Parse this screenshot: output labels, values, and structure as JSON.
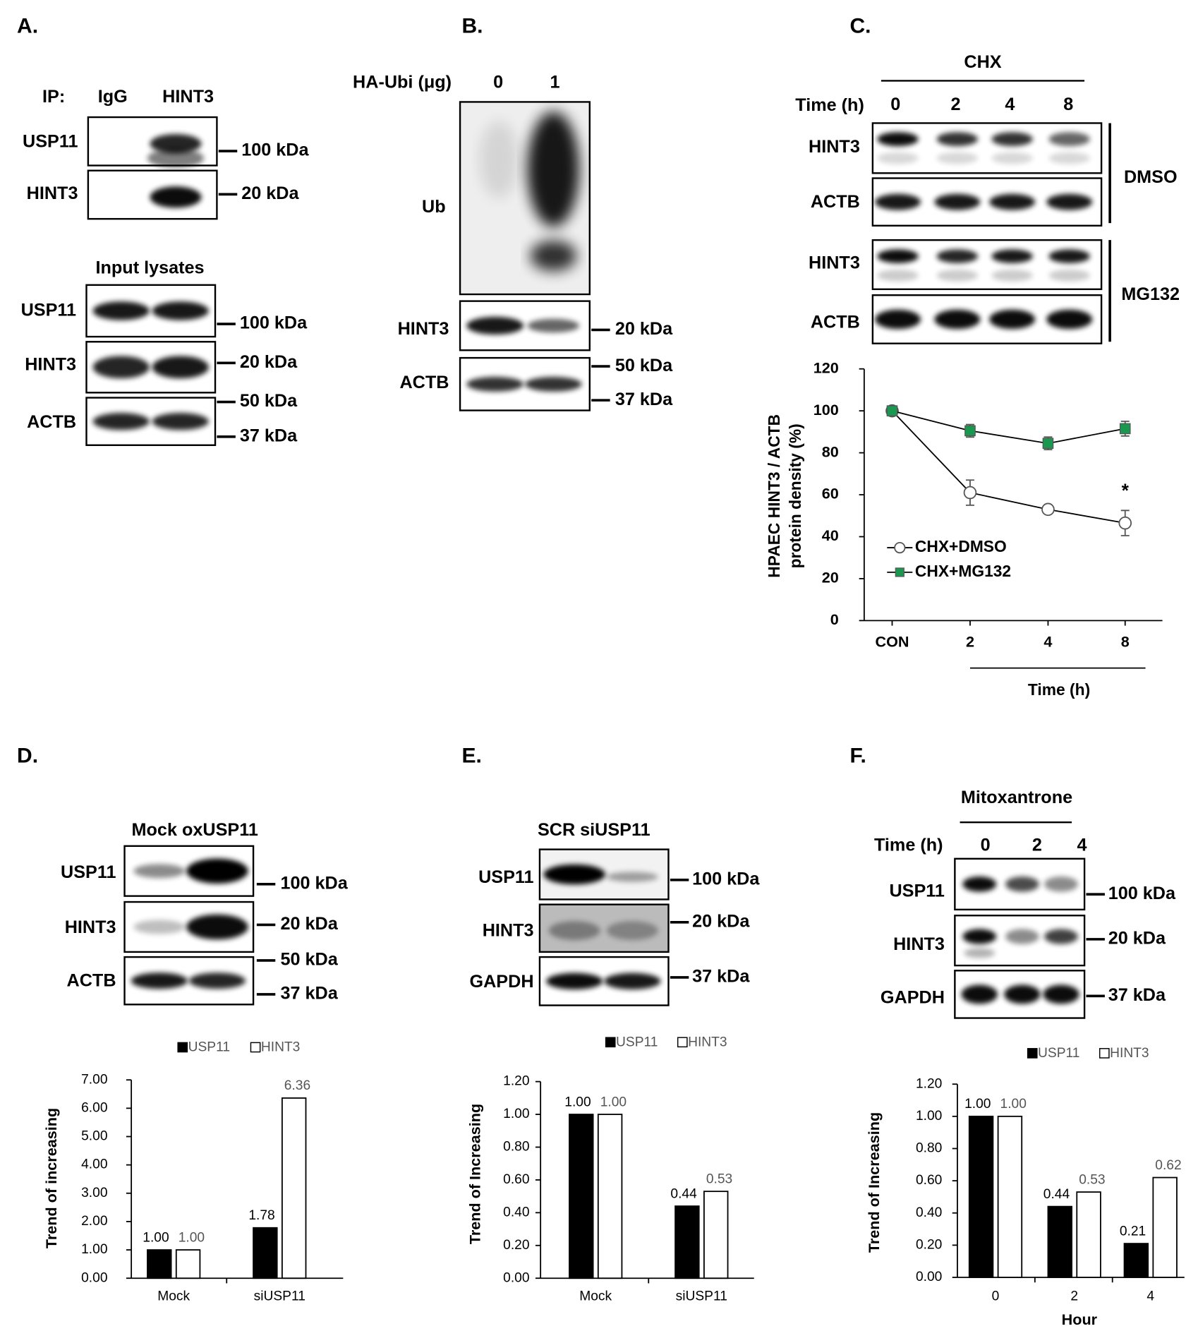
{
  "panels": {
    "A": {
      "label": "A.",
      "ip": "IP:",
      "lanes": [
        "IgG",
        "HINT3"
      ],
      "rows": [
        "USP11",
        "HINT3"
      ],
      "markers": [
        "100 kDa",
        "20 kDa"
      ],
      "input_title": "Input lysates",
      "input_rows": [
        "USP11",
        "HINT3",
        "ACTB"
      ],
      "input_markers": [
        "100 kDa",
        "20 kDa",
        "50 kDa",
        "37 kDa"
      ]
    },
    "B": {
      "label": "B.",
      "dose_label": "HA-Ubi (μg)",
      "lanes": [
        "0",
        "1"
      ],
      "rows": [
        "Ub",
        "HINT3",
        "ACTB"
      ],
      "markers": [
        "20 kDa",
        "50 kDa",
        "37 kDa"
      ]
    },
    "C": {
      "label": "C.",
      "treatment": "CHX",
      "time_label": "Time (h)",
      "lanes": [
        "0",
        "2",
        "4",
        "8"
      ],
      "rows": [
        "HINT3",
        "ACTB",
        "HINT3",
        "ACTB"
      ],
      "groups": [
        "DMSO",
        "MG132"
      ]
    },
    "D": {
      "label": "D.",
      "lanes_title": "Mock oxUSP11",
      "rows": [
        "USP11",
        "HINT3",
        "ACTB"
      ],
      "markers": [
        "100 kDa",
        "20 kDa",
        "50 kDa",
        "37 kDa"
      ]
    },
    "E": {
      "label": "E.",
      "lanes_title": "SCR siUSP11",
      "rows": [
        "USP11",
        "HINT3",
        "GAPDH"
      ],
      "markers": [
        "100 kDa",
        "20 kDa",
        "37 kDa"
      ]
    },
    "F": {
      "label": "F.",
      "treatment": "Mitoxantrone",
      "time_label": "Time (h)",
      "lanes": [
        "0",
        "2",
        "4"
      ],
      "rows": [
        "USP11",
        "HINT3",
        "GAPDH"
      ],
      "markers": [
        "100 kDa",
        "20 kDa",
        "37 kDa"
      ]
    }
  },
  "chart_data": [
    {
      "type": "line",
      "y_label": [
        "HPAEC  HINT3 / ACTB",
        "protein density (%)"
      ],
      "x_label": "Time (h)",
      "categories": [
        "CON",
        "2",
        "4",
        "8"
      ],
      "ylim": [
        0,
        120
      ],
      "yticks": [
        0,
        20,
        40,
        60,
        80,
        100,
        120
      ],
      "series": [
        {
          "name": "CHX+DMSO",
          "color": "#ffffff",
          "marker": "circle",
          "values": [
            100,
            61,
            53,
            46.5
          ],
          "errors": [
            2,
            6,
            1.5,
            6
          ]
        },
        {
          "name": "CHX+MG132",
          "color": "#1a9850",
          "marker": "square",
          "values": [
            100,
            90.5,
            84.5,
            91.5
          ],
          "errors": [
            2,
            3,
            3,
            3.5
          ]
        }
      ],
      "annotations": [
        {
          "text": "*",
          "index": 3
        }
      ]
    },
    {
      "type": "bar",
      "y_label": "Trend of increasing",
      "categories": [
        "Mock",
        "siUSP11"
      ],
      "ylim": [
        0,
        7
      ],
      "yticks": [
        {
          "value": 0,
          "label": "0.00"
        },
        {
          "value": 1,
          "label": "1.00"
        },
        {
          "value": 2,
          "label": "2.00"
        },
        {
          "value": 3,
          "label": "3.00"
        },
        {
          "value": 4,
          "label": "4.00"
        },
        {
          "value": 5,
          "label": "5.00"
        },
        {
          "value": 6,
          "label": "6.00"
        },
        {
          "value": 7,
          "label": "7.00"
        }
      ],
      "series": [
        {
          "name": "USP11",
          "color": "#000000",
          "values": [
            1.0,
            1.78
          ],
          "value_labels": [
            "1.00",
            "1.78"
          ]
        },
        {
          "name": "HINT3",
          "color": "#ffffff",
          "values": [
            1.0,
            6.36
          ],
          "value_labels": [
            "1.00",
            "6.36"
          ]
        }
      ]
    },
    {
      "type": "bar",
      "y_label": "Trend of Increasing",
      "categories": [
        "Mock",
        "siUSP11"
      ],
      "ylim": [
        0,
        1.2
      ],
      "yticks": [
        {
          "value": 0,
          "label": "0.00"
        },
        {
          "value": 0.2,
          "label": "0.20"
        },
        {
          "value": 0.4,
          "label": "0.40"
        },
        {
          "value": 0.6,
          "label": "0.60"
        },
        {
          "value": 0.8,
          "label": "0.80"
        },
        {
          "value": 1,
          "label": "1.00"
        },
        {
          "value": 1.2,
          "label": "1.20"
        }
      ],
      "series": [
        {
          "name": "USP11",
          "color": "#000000",
          "values": [
            1.0,
            0.44
          ],
          "value_labels": [
            "1.00",
            "0.44"
          ]
        },
        {
          "name": "HINT3",
          "color": "#ffffff",
          "values": [
            1.0,
            0.53
          ],
          "value_labels": [
            "1.00",
            "0.53"
          ]
        }
      ]
    },
    {
      "type": "bar",
      "y_label": "Trend of Increasing",
      "x_label": "Hour",
      "categories": [
        "0",
        "2",
        "4"
      ],
      "ylim": [
        0,
        1.2
      ],
      "yticks": [
        {
          "value": 0,
          "label": "0.00"
        },
        {
          "value": 0.2,
          "label": "0.20"
        },
        {
          "value": 0.4,
          "label": "0.40"
        },
        {
          "value": 0.6,
          "label": "0.60"
        },
        {
          "value": 0.8,
          "label": "0.80"
        },
        {
          "value": 1,
          "label": "1.00"
        },
        {
          "value": 1.2,
          "label": "1.20"
        }
      ],
      "series": [
        {
          "name": "USP11",
          "color": "#000000",
          "values": [
            1.0,
            0.44,
            0.21
          ],
          "value_labels": [
            "1.00",
            "0.44",
            "0.21"
          ]
        },
        {
          "name": "HINT3",
          "color": "#ffffff",
          "values": [
            1.0,
            0.53,
            0.62
          ],
          "value_labels": [
            "1.00",
            "0.53",
            "0.62"
          ]
        }
      ]
    }
  ]
}
